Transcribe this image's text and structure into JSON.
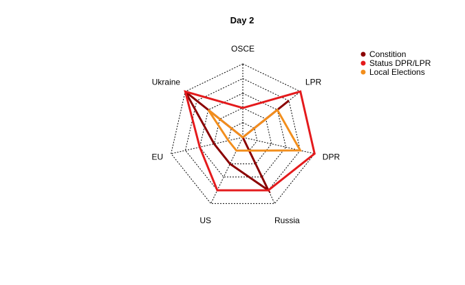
{
  "chart_data": {
    "type": "radar",
    "title": "Day 2",
    "axes": [
      "OSCE",
      "LPR",
      "DPR",
      "Russia",
      "US",
      "EU",
      "Ukraine"
    ],
    "range": [
      0,
      1
    ],
    "grid_levels": [
      0.2,
      0.4,
      0.6,
      0.8,
      1.0
    ],
    "grid_style": "dotted",
    "legend_position": "top-right",
    "series": [
      {
        "name": "Constition",
        "color": "#8B0000",
        "values": [
          0.0,
          0.8,
          0.0,
          0.8,
          0.4,
          0.4,
          1.0
        ]
      },
      {
        "name": "Status DPR/LPR",
        "color": "#E41A1C",
        "values": [
          0.4,
          1.0,
          1.0,
          0.8,
          0.8,
          0.6,
          1.0
        ]
      },
      {
        "name": "Local Elections",
        "color": "#F28E1C",
        "values": [
          0.0,
          0.6,
          0.8,
          0.2,
          0.2,
          0.2,
          0.6
        ]
      }
    ]
  }
}
